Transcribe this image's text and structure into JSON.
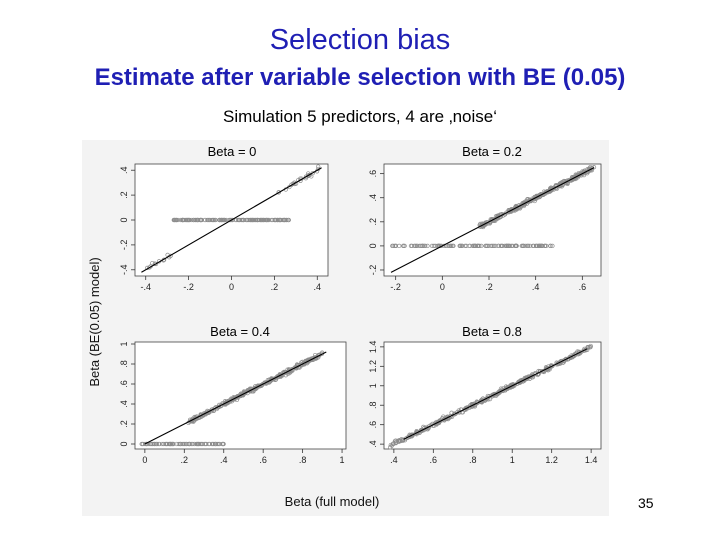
{
  "slide": {
    "title": "Selection bias",
    "subtitle": "Estimate after variable selection with BE (0.05)",
    "caption": "Simulation 5 predictors, 4 are ‚noise‘",
    "page_number": "35"
  },
  "figure": {
    "ylabel": "Beta (BE(0.05) model)",
    "xlabel": "Beta (full model)",
    "point_color": "#8c8c8c",
    "line_color": "#000000"
  },
  "chart_data": [
    {
      "type": "scatter",
      "title": "Beta = 0",
      "xlim": [
        -0.45,
        0.45
      ],
      "ylim": [
        -0.45,
        0.45
      ],
      "xticks": [
        -0.4,
        -0.2,
        0,
        0.2,
        0.4
      ],
      "xtick_labels": [
        "-.4",
        "-.2",
        "0",
        ".2",
        ".4"
      ],
      "yticks": [
        -0.4,
        -0.2,
        0,
        0.2,
        0.4
      ],
      "ytick_labels": [
        "-.4",
        "-.2",
        "0",
        ".2",
        ".4"
      ],
      "line": {
        "x": [
          -0.42,
          0.42
        ],
        "y": [
          -0.42,
          0.42
        ]
      },
      "points_selected_upper": {
        "x_range": [
          0.22,
          0.42
        ],
        "approx_count": 25
      },
      "points_selected_lower": {
        "x_range": [
          -0.41,
          -0.28
        ],
        "approx_count": 12
      },
      "points_zero": {
        "x_range": [
          -0.27,
          0.27
        ],
        "approx_count": 150
      }
    },
    {
      "type": "scatter",
      "title": "Beta = 0.2",
      "xlim": [
        -0.25,
        0.68
      ],
      "ylim": [
        -0.25,
        0.68
      ],
      "xticks": [
        -0.2,
        0,
        0.2,
        0.4,
        0.6
      ],
      "xtick_labels": [
        "-.2",
        "0",
        ".2",
        ".4",
        ".6"
      ],
      "yticks": [
        -0.2,
        0,
        0.2,
        0.4,
        0.6
      ],
      "ytick_labels": [
        "-.2",
        "0",
        ".2",
        ".4",
        ".6"
      ],
      "line": {
        "x": [
          -0.22,
          0.65
        ],
        "y": [
          -0.22,
          0.65
        ]
      },
      "points_selected": {
        "x_range": [
          0.16,
          0.65
        ],
        "approx_count": 300
      },
      "points_zero": {
        "x_range": [
          -0.22,
          0.48
        ],
        "approx_count": 120
      }
    },
    {
      "type": "scatter",
      "title": "Beta = 0.4",
      "xlim": [
        -0.05,
        1.02
      ],
      "ylim": [
        -0.05,
        1.02
      ],
      "xticks": [
        0,
        0.2,
        0.4,
        0.6,
        0.8,
        1
      ],
      "xtick_labels": [
        "0",
        ".2",
        ".4",
        ".6",
        ".8",
        "1"
      ],
      "yticks": [
        0,
        0.2,
        0.4,
        0.6,
        0.8,
        1
      ],
      "ytick_labels": [
        "0",
        ".2",
        ".4",
        ".6",
        ".8",
        "1"
      ],
      "line": {
        "x": [
          0.0,
          0.92
        ],
        "y": [
          0.0,
          0.92
        ]
      },
      "points_selected": {
        "x_range": [
          0.22,
          0.9
        ],
        "approx_count": 300
      },
      "points_zero": {
        "x_range": [
          -0.02,
          0.4
        ],
        "approx_count": 80
      }
    },
    {
      "type": "scatter",
      "title": "Beta = 0.8",
      "xlim": [
        0.35,
        1.45
      ],
      "ylim": [
        0.35,
        1.45
      ],
      "xticks": [
        0.4,
        0.6,
        0.8,
        1,
        1.2,
        1.4
      ],
      "xtick_labels": [
        ".4",
        ".6",
        ".8",
        "1",
        "1.2",
        "1.4"
      ],
      "yticks": [
        0.4,
        0.6,
        0.8,
        1,
        1.2,
        1.4
      ],
      "ytick_labels": [
        ".4",
        ".6",
        ".8",
        "1",
        "1.2",
        "1.4"
      ],
      "line": {
        "x": [
          0.45,
          1.38
        ],
        "y": [
          0.45,
          1.38
        ]
      },
      "points_selected": {
        "x_range": [
          0.38,
          1.4
        ],
        "approx_count": 350
      }
    }
  ]
}
